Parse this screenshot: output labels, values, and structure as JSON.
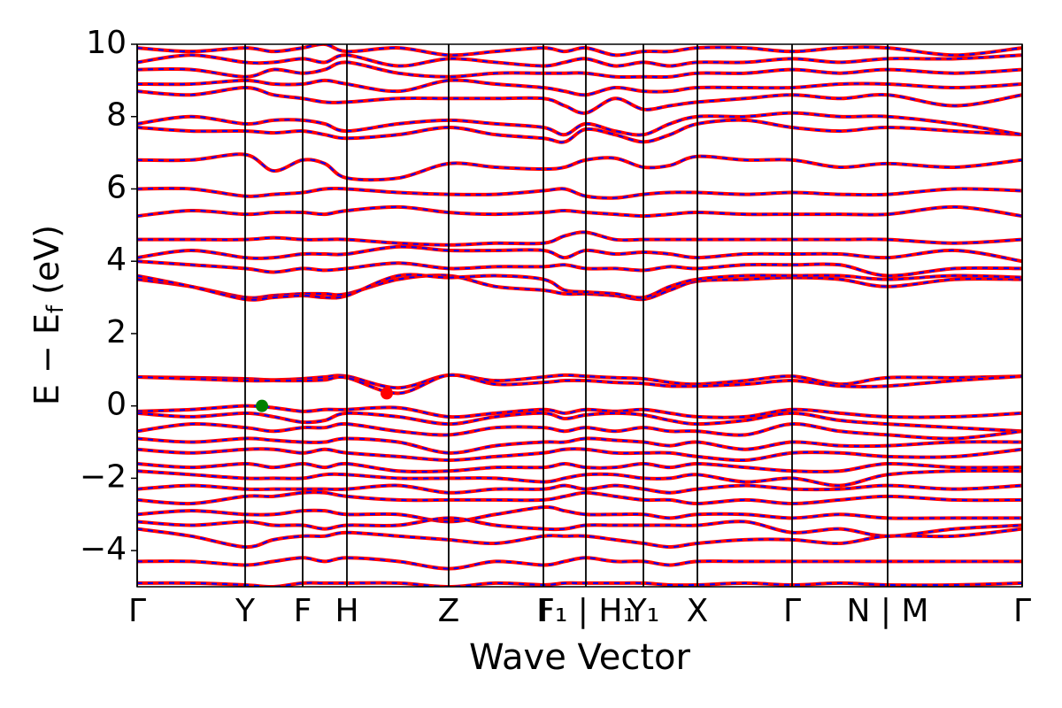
{
  "chart_data": {
    "type": "band_structure",
    "xlabel": "Wave Vector",
    "ylabel": [
      "E − E",
      "f",
      " (eV)"
    ],
    "xlim": [
      0,
      1000
    ],
    "ylim": [
      -5,
      10
    ],
    "yticks": [
      {
        "value": -4,
        "label": "−4"
      },
      {
        "value": -2,
        "label": "−2"
      },
      0,
      2,
      4,
      6,
      8,
      10
    ],
    "xticks": [
      {
        "value": 0,
        "label": "Γ"
      },
      {
        "value": 122,
        "label": "Y"
      },
      {
        "value": 187,
        "label": "F"
      },
      {
        "value": 237,
        "label": "H"
      },
      {
        "value": 352,
        "label": "Z"
      },
      {
        "value": 459,
        "label": "I"
      },
      {
        "value": 507,
        "label": "F₁ | H₁"
      },
      {
        "value": 572,
        "label": "Y₁"
      },
      {
        "value": 633,
        "label": "X"
      },
      {
        "value": 740,
        "label": "Γ"
      },
      {
        "value": 848,
        "label": "N | M"
      },
      {
        "value": 1000,
        "label": "Γ"
      }
    ],
    "line_color": "#ff0000",
    "dash_color": "#0000ff",
    "axis_line_color": "#000000",
    "x": [
      0,
      61,
      122,
      154,
      187,
      212,
      237,
      295,
      352,
      405,
      459,
      483,
      507,
      540,
      572,
      602,
      633,
      687,
      740,
      794,
      848,
      924,
      1000
    ],
    "bands": [
      [
        0.8,
        0.78,
        0.75,
        0.72,
        0.75,
        0.8,
        0.82,
        0.5,
        0.85,
        0.7,
        0.8,
        0.85,
        0.82,
        0.78,
        0.75,
        0.65,
        0.6,
        0.7,
        0.82,
        0.6,
        0.78,
        0.78,
        0.82
      ],
      [
        0.8,
        0.75,
        0.7,
        0.7,
        0.7,
        0.72,
        0.78,
        0.35,
        0.85,
        0.6,
        0.65,
        0.7,
        0.7,
        0.65,
        0.62,
        0.55,
        0.55,
        0.6,
        0.7,
        0.55,
        0.55,
        0.7,
        0.82
      ],
      [
        3.5,
        3.3,
        3.0,
        3.05,
        3.1,
        3.1,
        3.1,
        3.5,
        3.6,
        3.3,
        3.2,
        3.1,
        3.1,
        3.05,
        2.95,
        3.2,
        3.45,
        3.5,
        3.55,
        3.5,
        3.3,
        3.5,
        3.5
      ],
      [
        3.6,
        3.3,
        2.95,
        3.0,
        3.05,
        3.0,
        3.05,
        3.6,
        3.55,
        3.6,
        3.5,
        3.2,
        3.15,
        3.1,
        3.0,
        3.3,
        3.5,
        3.6,
        3.6,
        3.6,
        3.5,
        3.6,
        3.55
      ],
      [
        4.0,
        3.9,
        3.8,
        3.7,
        3.8,
        3.75,
        3.8,
        3.95,
        3.8,
        3.85,
        3.85,
        3.9,
        3.8,
        3.8,
        3.75,
        3.85,
        3.8,
        3.9,
        3.9,
        3.9,
        3.6,
        3.8,
        3.8
      ],
      [
        4.1,
        4.3,
        4.1,
        4.1,
        4.2,
        4.2,
        4.2,
        4.4,
        4.3,
        4.3,
        4.3,
        4.1,
        4.3,
        4.2,
        4.25,
        4.2,
        4.1,
        4.2,
        4.2,
        4.2,
        4.1,
        4.3,
        4.0
      ],
      [
        4.6,
        4.6,
        4.6,
        4.65,
        4.6,
        4.6,
        4.6,
        4.5,
        4.45,
        4.5,
        4.5,
        4.7,
        4.8,
        4.6,
        4.6,
        4.6,
        4.6,
        4.6,
        4.6,
        4.6,
        4.6,
        4.5,
        4.6
      ],
      [
        5.25,
        5.4,
        5.3,
        5.35,
        5.35,
        5.3,
        5.4,
        5.5,
        5.35,
        5.3,
        5.35,
        5.4,
        5.35,
        5.3,
        5.25,
        5.3,
        5.35,
        5.3,
        5.3,
        5.3,
        5.3,
        5.5,
        5.25
      ],
      [
        6.0,
        6.0,
        5.8,
        5.85,
        5.9,
        6.0,
        6.0,
        5.9,
        5.85,
        5.85,
        5.95,
        6.0,
        5.8,
        5.75,
        5.85,
        5.9,
        5.9,
        5.85,
        5.9,
        5.85,
        5.85,
        6.0,
        5.95
      ],
      [
        6.8,
        6.8,
        6.95,
        6.5,
        6.8,
        6.7,
        6.3,
        6.3,
        6.7,
        6.6,
        6.55,
        6.6,
        6.8,
        6.85,
        6.6,
        6.65,
        6.9,
        6.8,
        6.8,
        6.6,
        6.7,
        6.6,
        6.8
      ],
      [
        7.7,
        7.6,
        7.6,
        7.55,
        7.6,
        7.5,
        7.4,
        7.5,
        7.7,
        7.5,
        7.4,
        7.3,
        7.65,
        7.5,
        7.3,
        7.5,
        7.8,
        7.9,
        7.7,
        7.6,
        7.7,
        7.6,
        7.5
      ],
      [
        7.8,
        8.0,
        7.8,
        7.9,
        7.9,
        7.8,
        7.6,
        7.8,
        7.9,
        7.8,
        7.7,
        7.5,
        7.8,
        7.6,
        7.5,
        7.8,
        8.0,
        8.0,
        8.1,
        8.0,
        8.0,
        7.8,
        7.5
      ],
      [
        8.7,
        8.6,
        8.8,
        8.6,
        8.5,
        8.4,
        8.4,
        8.5,
        8.5,
        8.5,
        8.5,
        8.3,
        8.1,
        8.5,
        8.2,
        8.3,
        8.4,
        8.5,
        8.6,
        8.5,
        8.6,
        8.3,
        8.6
      ],
      [
        8.9,
        8.9,
        9.0,
        8.9,
        8.9,
        9.0,
        8.9,
        8.7,
        9.0,
        8.9,
        8.8,
        8.7,
        8.6,
        8.8,
        8.7,
        8.7,
        8.8,
        8.8,
        8.8,
        8.9,
        8.9,
        8.8,
        8.9
      ],
      [
        9.3,
        9.3,
        9.1,
        9.3,
        9.2,
        9.3,
        9.5,
        9.2,
        9.1,
        9.2,
        9.2,
        9.2,
        9.2,
        9.1,
        9.1,
        9.1,
        9.2,
        9.2,
        9.3,
        9.2,
        9.3,
        9.2,
        9.3
      ],
      [
        9.5,
        9.7,
        9.5,
        9.5,
        9.6,
        9.5,
        9.7,
        9.4,
        9.6,
        9.5,
        9.4,
        9.5,
        9.6,
        9.4,
        9.5,
        9.4,
        9.5,
        9.5,
        9.6,
        9.5,
        9.6,
        9.6,
        9.7
      ],
      [
        9.9,
        9.8,
        9.9,
        9.8,
        9.9,
        10,
        9.8,
        9.9,
        9.7,
        9.8,
        9.9,
        9.8,
        9.9,
        9.7,
        9.8,
        9.8,
        9.9,
        9.9,
        9.8,
        9.9,
        9.9,
        9.7,
        9.9
      ],
      [
        -0.15,
        -0.1,
        0,
        -0.05,
        -0.15,
        -0.1,
        -0.1,
        -0.05,
        -0.3,
        -0.2,
        -0.1,
        -0.2,
        -0.1,
        -0.15,
        -0.1,
        -0.2,
        -0.3,
        -0.3,
        -0.1,
        -0.2,
        -0.3,
        -0.3,
        -0.2
      ],
      [
        -0.2,
        -0.3,
        -0.2,
        -0.3,
        -0.45,
        -0.4,
        -0.2,
        -0.3,
        -0.5,
        -0.3,
        -0.2,
        -0.35,
        -0.25,
        -0.2,
        -0.25,
        -0.4,
        -0.5,
        -0.4,
        -0.2,
        -0.4,
        -0.5,
        -0.6,
        -0.7
      ],
      [
        -0.7,
        -0.5,
        -0.6,
        -0.7,
        -0.6,
        -0.6,
        -0.5,
        -0.7,
        -0.8,
        -0.6,
        -0.6,
        -0.7,
        -0.6,
        -0.7,
        -0.6,
        -0.7,
        -0.7,
        -0.8,
        -0.5,
        -0.7,
        -0.8,
        -0.9,
        -0.7
      ],
      [
        -0.9,
        -1.0,
        -0.9,
        -0.95,
        -1.0,
        -1.0,
        -0.9,
        -1.0,
        -1.3,
        -1.1,
        -1.0,
        -1.0,
        -0.9,
        -0.95,
        -1.0,
        -1.1,
        -1.0,
        -1.2,
        -1.0,
        -1.1,
        -1.1,
        -1.0,
        -1.0
      ],
      [
        -1.2,
        -1.3,
        -1.2,
        -1.2,
        -1.3,
        -1.2,
        -1.3,
        -1.4,
        -1.5,
        -1.4,
        -1.3,
        -1.2,
        -1.2,
        -1.3,
        -1.3,
        -1.3,
        -1.4,
        -1.5,
        -1.3,
        -1.3,
        -1.4,
        -1.4,
        -1.2
      ],
      [
        -1.6,
        -1.7,
        -1.6,
        -1.7,
        -1.6,
        -1.7,
        -1.6,
        -1.8,
        -1.8,
        -1.7,
        -1.7,
        -1.6,
        -1.7,
        -1.7,
        -1.6,
        -1.7,
        -1.6,
        -1.7,
        -1.8,
        -1.8,
        -1.6,
        -1.7,
        -1.7
      ],
      [
        -1.8,
        -1.9,
        -2.0,
        -2.0,
        -2.0,
        -1.9,
        -1.9,
        -2.0,
        -2.0,
        -2.0,
        -2.1,
        -2.0,
        -1.9,
        -1.9,
        -2.0,
        -2.0,
        -1.9,
        -2.1,
        -2.0,
        -2.2,
        -1.9,
        -1.8,
        -1.8
      ],
      [
        -2.3,
        -2.2,
        -2.3,
        -2.3,
        -2.3,
        -2.3,
        -2.3,
        -2.2,
        -2.4,
        -2.3,
        -2.3,
        -2.2,
        -2.3,
        -2.2,
        -2.3,
        -2.4,
        -2.3,
        -2.2,
        -2.3,
        -2.3,
        -2.2,
        -2.3,
        -2.2
      ],
      [
        -2.6,
        -2.7,
        -2.5,
        -2.5,
        -2.4,
        -2.4,
        -2.5,
        -2.6,
        -2.6,
        -2.6,
        -2.6,
        -2.5,
        -2.4,
        -2.5,
        -2.6,
        -2.6,
        -2.7,
        -2.6,
        -2.7,
        -2.6,
        -2.5,
        -2.6,
        -2.6
      ],
      [
        -3.0,
        -2.9,
        -3.0,
        -3.0,
        -2.9,
        -2.9,
        -3.0,
        -3.0,
        -3.2,
        -3.0,
        -2.8,
        -2.9,
        -3.0,
        -3.0,
        -3.0,
        -3.1,
        -3.0,
        -3.0,
        -3.1,
        -3.0,
        -3.1,
        -3.1,
        -3.1
      ],
      [
        -3.2,
        -3.3,
        -3.2,
        -3.3,
        -3.3,
        -3.4,
        -3.3,
        -3.3,
        -3.1,
        -3.3,
        -3.4,
        -3.4,
        -3.3,
        -3.3,
        -3.3,
        -3.3,
        -3.3,
        -3.2,
        -3.5,
        -3.4,
        -3.6,
        -3.4,
        -3.3
      ],
      [
        -3.4,
        -3.6,
        -3.9,
        -3.7,
        -3.6,
        -3.6,
        -3.5,
        -3.6,
        -3.7,
        -3.8,
        -3.6,
        -3.6,
        -3.6,
        -3.7,
        -3.8,
        -3.9,
        -3.8,
        -3.7,
        -3.7,
        -3.8,
        -3.6,
        -3.6,
        -3.4
      ],
      [
        -4.3,
        -4.3,
        -4.4,
        -4.3,
        -4.2,
        -4.3,
        -4.2,
        -4.3,
        -4.5,
        -4.3,
        -4.4,
        -4.3,
        -4.2,
        -4.3,
        -4.3,
        -4.4,
        -4.3,
        -4.3,
        -4.3,
        -4.3,
        -4.3,
        -4.3,
        -4.3
      ],
      [
        -4.9,
        -4.9,
        -4.95,
        -5.0,
        -4.9,
        -4.9,
        -4.9,
        -4.9,
        -5.0,
        -4.9,
        -4.95,
        -4.9,
        -4.9,
        -4.9,
        -4.9,
        -4.95,
        -4.95,
        -4.9,
        -4.95,
        -4.9,
        -4.95,
        -4.95,
        -4.9
      ]
    ],
    "markers": [
      {
        "x": 141,
        "y": 0,
        "color": "#008000"
      },
      {
        "x": 282,
        "y": 0.35,
        "color": "#ff0000"
      }
    ]
  }
}
